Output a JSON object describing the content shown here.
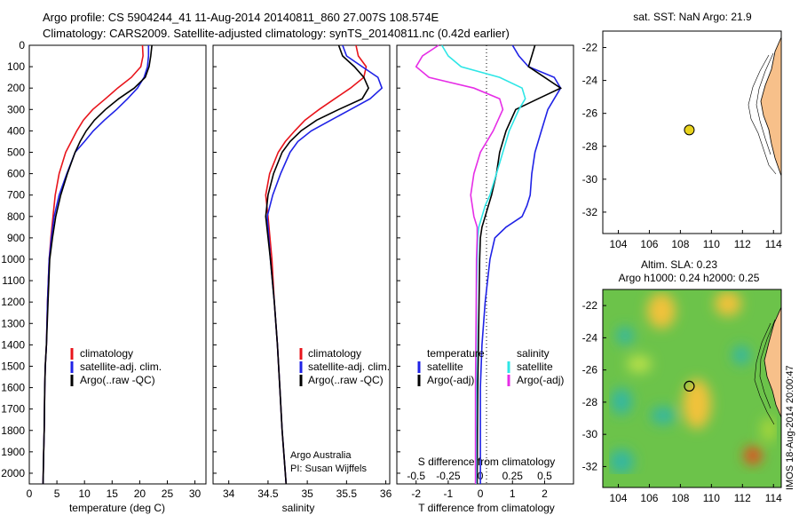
{
  "header": {
    "line1": "Argo profile: CS 5904244_41 11-Aug-2014 20140811_860 27.007S 108.574E",
    "line2": "Climatology: CARS2009. Satellite-adjusted climatology: synTS_20140811.nc (0.42d earlier)"
  },
  "watermark": "IMOS 18-Aug-2014 20:00:47",
  "colors": {
    "climatology": "#e8141b",
    "satellite": "#1f22e6",
    "argo": "#000000",
    "sat_salinity": "#2ee6e6",
    "argo_salinity": "#e62ee6",
    "land": "#f7c08a",
    "marker": "#e8d21c"
  },
  "chart_data": [
    {
      "id": "temperature",
      "type": "line",
      "xlabel": "temperature (deg C)",
      "xlim": [
        0,
        32
      ],
      "xticks": [
        "0",
        "5",
        "10",
        "15",
        "20",
        "25",
        "30"
      ],
      "ylim": [
        2050,
        0
      ],
      "yticks": [
        "0",
        "100",
        "200",
        "300",
        "400",
        "500",
        "600",
        "700",
        "800",
        "900",
        "1000",
        "1100",
        "1200",
        "1300",
        "1400",
        "1500",
        "1600",
        "1700",
        "1800",
        "1900",
        "2000"
      ],
      "legend": [
        "climatology",
        "satellite-adj. clim.",
        "Argo(..raw -QC)"
      ],
      "series": [
        {
          "name": "climatology",
          "color_key": "climatology",
          "x": [
            20.5,
            20.6,
            20.2,
            18.5,
            16.0,
            13.8,
            11.5,
            9.8,
            8.6,
            7.6,
            6.6,
            5.4,
            4.7,
            4.3,
            3.9,
            3.6,
            3.3,
            3.1,
            2.9,
            2.8,
            2.7,
            2.6,
            2.5
          ],
          "y": [
            0,
            50,
            100,
            150,
            200,
            250,
            300,
            350,
            400,
            450,
            500,
            600,
            700,
            800,
            900,
            1000,
            1200,
            1400,
            1500,
            1600,
            1800,
            1900,
            2050
          ]
        },
        {
          "name": "satellite-adj. clim.",
          "color_key": "satellite",
          "x": [
            21.6,
            21.6,
            21.4,
            20.8,
            19.6,
            17.8,
            15.8,
            13.6,
            11.6,
            10.0,
            8.3,
            6.8,
            5.4,
            4.5,
            4.0,
            3.6,
            3.3,
            3.1,
            2.9,
            2.8,
            2.7,
            2.6,
            2.5
          ],
          "y": [
            0,
            50,
            100,
            150,
            200,
            250,
            300,
            350,
            400,
            450,
            500,
            600,
            700,
            800,
            900,
            1000,
            1200,
            1400,
            1500,
            1600,
            1800,
            1900,
            2050
          ]
        },
        {
          "name": "Argo(..raw -QC)",
          "color_key": "argo",
          "x": [
            22.2,
            22.0,
            21.7,
            21.0,
            19.0,
            16.2,
            13.8,
            11.8,
            10.3,
            9.2,
            8.3,
            6.9,
            5.7,
            4.8,
            4.2,
            3.7,
            3.4,
            3.1,
            2.9,
            2.8,
            2.7,
            2.6,
            2.5
          ],
          "y": [
            0,
            50,
            100,
            150,
            200,
            250,
            300,
            350,
            400,
            450,
            500,
            600,
            700,
            800,
            900,
            1000,
            1200,
            1400,
            1500,
            1600,
            1800,
            1900,
            2050
          ]
        }
      ]
    },
    {
      "id": "salinity",
      "type": "line",
      "xlabel": "salinity",
      "xlim": [
        33.8,
        36.05
      ],
      "xticks": [
        "34",
        "34.5",
        "35",
        "35.5",
        "36"
      ],
      "ylim": [
        2050,
        0
      ],
      "legend": [
        "climatology",
        "satellite-adj. clim.",
        "Argo(..raw -QC)"
      ],
      "annotation": [
        "Argo Australia",
        "PI: Susan Wijffels"
      ],
      "series": [
        {
          "name": "climatology",
          "color_key": "climatology",
          "x": [
            35.62,
            35.65,
            35.75,
            35.72,
            35.55,
            35.35,
            35.15,
            34.97,
            34.84,
            34.72,
            34.63,
            34.52,
            34.47,
            34.5,
            34.55,
            34.58,
            34.62,
            34.65,
            34.68,
            34.7,
            34.73
          ],
          "y": [
            0,
            50,
            100,
            150,
            200,
            250,
            300,
            350,
            400,
            450,
            500,
            600,
            700,
            800,
            1000,
            1200,
            1400,
            1600,
            1800,
            1900,
            2050
          ]
        },
        {
          "name": "satellite-adj. clim.",
          "color_key": "satellite",
          "x": [
            35.45,
            35.5,
            35.7,
            35.9,
            35.95,
            35.8,
            35.55,
            35.3,
            35.05,
            34.88,
            34.78,
            34.66,
            34.56,
            34.49,
            34.53,
            34.58,
            34.62,
            34.65,
            34.68,
            34.7,
            34.73
          ],
          "y": [
            0,
            50,
            100,
            150,
            200,
            250,
            300,
            350,
            400,
            450,
            500,
            600,
            700,
            800,
            1000,
            1200,
            1400,
            1600,
            1800,
            1900,
            2050
          ]
        },
        {
          "name": "Argo(..raw -QC)",
          "color_key": "argo",
          "x": [
            35.4,
            35.45,
            35.6,
            35.72,
            35.78,
            35.7,
            35.4,
            35.12,
            34.92,
            34.78,
            34.68,
            34.57,
            34.5,
            34.47,
            34.53,
            34.58,
            34.62,
            34.65,
            34.68,
            34.7,
            34.73
          ],
          "y": [
            0,
            50,
            100,
            150,
            200,
            250,
            300,
            350,
            400,
            450,
            500,
            600,
            700,
            800,
            1000,
            1200,
            1400,
            1600,
            1800,
            1900,
            2050
          ]
        }
      ]
    },
    {
      "id": "difference",
      "type": "line",
      "xlabel": "T difference from climatology",
      "xlabel_top": "S difference from climatology",
      "xlim": [
        -2.6,
        2.9
      ],
      "xticks": [
        "-2",
        "-1",
        "0",
        "1",
        "2"
      ],
      "xticks_top": [
        "-0.5",
        "-0.25",
        "0",
        "0.25",
        "0.5"
      ],
      "ylim": [
        2050,
        0
      ],
      "legend_left_title": "temperature",
      "legend_right_title": "salinity",
      "legend": [
        "satellite",
        "Argo(-adj)",
        "satellite",
        "Argo(-adj)"
      ],
      "series": [
        {
          "name": "satellite",
          "color_key": "satellite",
          "x": [
            1.0,
            1.2,
            1.5,
            2.3,
            2.5,
            2.3,
            2.1,
            1.9,
            1.7,
            1.6,
            1.55,
            1.45,
            1.3,
            0.8,
            0.45,
            0.3,
            0.15,
            0.05,
            0.0,
            0.0,
            0.0
          ],
          "y": [
            0,
            50,
            100,
            150,
            200,
            250,
            300,
            400,
            500,
            600,
            700,
            750,
            800,
            850,
            900,
            1000,
            1200,
            1400,
            1600,
            1800,
            2050
          ]
        },
        {
          "name": "Argo(-adj)",
          "color_key": "argo",
          "x": [
            1.7,
            1.6,
            1.5,
            2.0,
            2.5,
            1.8,
            1.1,
            0.8,
            0.6,
            0.5,
            0.35,
            0.25,
            0.15,
            0.05,
            0.0,
            -0.02,
            -0.04,
            -0.06,
            -0.08,
            -0.09,
            -0.1
          ],
          "y": [
            0,
            50,
            100,
            150,
            200,
            250,
            300,
            400,
            500,
            600,
            700,
            750,
            800,
            850,
            900,
            1000,
            1200,
            1400,
            1600,
            1800,
            2050
          ]
        },
        {
          "name": "salinity satellite",
          "color_key": "sat_salinity",
          "x": [
            -1.2,
            -1.0,
            -0.6,
            0.6,
            1.3,
            1.4,
            1.2,
            0.9,
            0.7,
            0.5,
            0.3,
            0.15,
            0.05,
            -0.05,
            -0.08,
            -0.1,
            -0.12,
            -0.12,
            -0.12,
            -0.13,
            -0.13
          ],
          "y": [
            0,
            50,
            100,
            150,
            200,
            250,
            300,
            400,
            500,
            600,
            700,
            750,
            800,
            850,
            900,
            1000,
            1200,
            1400,
            1600,
            1800,
            2050
          ]
        },
        {
          "name": "salinity Argo(-adj)",
          "color_key": "argo_salinity",
          "x": [
            -1.3,
            -1.8,
            -2.0,
            -1.6,
            -0.2,
            0.6,
            0.7,
            0.4,
            0.0,
            -0.2,
            -0.3,
            -0.25,
            -0.2,
            -0.1,
            -0.1,
            -0.12,
            -0.13,
            -0.14,
            -0.15,
            -0.15,
            -0.15
          ],
          "y": [
            0,
            50,
            100,
            150,
            200,
            250,
            300,
            400,
            500,
            600,
            700,
            750,
            800,
            850,
            900,
            1000,
            1200,
            1400,
            1600,
            1800,
            2050
          ]
        }
      ]
    },
    {
      "id": "sst_map",
      "type": "map",
      "title": "sat. SST: NaN Argo: 21.9",
      "xlim": [
        103,
        114.5
      ],
      "ylim": [
        -33.3,
        -21
      ],
      "xticks": [
        "104",
        "106",
        "108",
        "110",
        "112",
        "114"
      ],
      "yticks": [
        "-22",
        "-24",
        "-26",
        "-28",
        "-30",
        "-32"
      ],
      "marker": {
        "lon": 108.574,
        "lat": -27.007
      }
    },
    {
      "id": "sla_map",
      "type": "heatmap",
      "title": "Altim. SLA: 0.23",
      "subtitle": "Argo h1000: 0.24 h2000: 0.25",
      "xlim": [
        103,
        114.5
      ],
      "ylim": [
        -33.3,
        -21
      ],
      "xticks": [
        "104",
        "106",
        "108",
        "110",
        "112",
        "114"
      ],
      "yticks": [
        "-22",
        "-24",
        "-26",
        "-28",
        "-30",
        "-32"
      ],
      "marker": {
        "lon": 108.574,
        "lat": -27.007
      }
    }
  ]
}
